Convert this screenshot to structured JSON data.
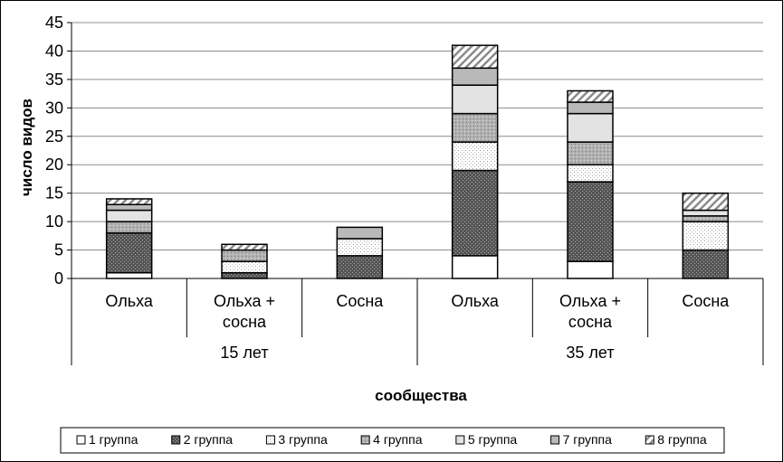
{
  "chart_data": {
    "type": "bar",
    "stacked": true,
    "xlabel": "сообщества",
    "ylabel": "число видов",
    "ylim": [
      0,
      45
    ],
    "yticks": [
      0,
      5,
      10,
      15,
      20,
      25,
      30,
      35,
      40,
      45
    ],
    "grid": "horizontal",
    "legend_position": "bottom",
    "categories": [
      {
        "lines": [
          "Ольха"
        ]
      },
      {
        "lines": [
          "Ольха +",
          "сосна"
        ]
      },
      {
        "lines": [
          "Сосна"
        ]
      },
      {
        "lines": [
          "Ольха"
        ]
      },
      {
        "lines": [
          "Ольха +",
          "сосна"
        ]
      },
      {
        "lines": [
          "Сосна"
        ]
      }
    ],
    "groups": [
      {
        "label": "15 лет",
        "span": [
          0,
          2
        ]
      },
      {
        "label": "35 лет",
        "span": [
          3,
          5
        ]
      }
    ],
    "series": [
      {
        "name": "1 группа",
        "pattern": "white",
        "values": [
          1,
          0,
          0,
          4,
          3,
          0
        ]
      },
      {
        "name": "2 группа",
        "pattern": "darkdots",
        "values": [
          7,
          1,
          4,
          15,
          14,
          5
        ]
      },
      {
        "name": "3 группа",
        "pattern": "lightdots",
        "values": [
          0,
          2,
          3,
          5,
          3,
          5
        ]
      },
      {
        "name": "4 группа",
        "pattern": "graydots",
        "values": [
          2,
          2,
          0,
          5,
          4,
          1
        ]
      },
      {
        "name": "5 группа",
        "pattern": "lightgray",
        "values": [
          2,
          0,
          0,
          5,
          5,
          1
        ]
      },
      {
        "name": "7 группа",
        "pattern": "midgray",
        "values": [
          1,
          0,
          2,
          3,
          2,
          0
        ]
      },
      {
        "name": "8 группа",
        "pattern": "hatch",
        "values": [
          1,
          1,
          0,
          4,
          2,
          3
        ]
      }
    ]
  }
}
